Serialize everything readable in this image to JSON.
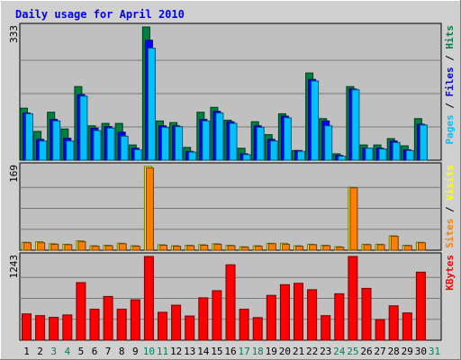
{
  "chart_data": {
    "type": "bar",
    "title": "Daily usage for April 2010",
    "days": [
      "1",
      "2",
      "3",
      "4",
      "5",
      "6",
      "7",
      "8",
      "9",
      "10",
      "11",
      "12",
      "13",
      "14",
      "15",
      "16",
      "17",
      "18",
      "19",
      "20",
      "21",
      "22",
      "23",
      "24",
      "25",
      "26",
      "27",
      "28",
      "29",
      "30",
      "31"
    ],
    "weekend_days": [
      "3",
      "4",
      "10",
      "11",
      "17",
      "18",
      "24",
      "25",
      "31"
    ],
    "panels": [
      {
        "id": "hits_files_pages",
        "max_label": "333",
        "ylim": [
          0,
          333
        ],
        "legend": [
          "Pages",
          "Files",
          "Hits"
        ],
        "series": [
          {
            "key": "hits",
            "values": [
              130,
              72,
              120,
              78,
              184,
              86,
              92,
              92,
              38,
              333,
              98,
              94,
              32,
              120,
              132,
              100,
              30,
              96,
              64,
              116,
              24,
              218,
              104,
              16,
              184,
              38,
              38,
              54,
              36,
              104,
              0
            ]
          },
          {
            "key": "files",
            "values": [
              118,
              52,
              102,
              55,
              164,
              80,
              84,
              70,
              30,
              300,
              86,
              86,
              22,
              102,
              122,
              96,
              16,
              86,
              52,
              110,
              24,
              202,
              98,
              12,
              178,
              30,
              30,
              48,
              26,
              90,
              0
            ]
          },
          {
            "key": "pages",
            "values": [
              116,
              48,
              98,
              48,
              160,
              74,
              80,
              60,
              26,
              280,
              82,
              84,
              20,
              98,
              118,
              92,
              14,
              82,
              48,
              106,
              22,
              198,
              86,
              10,
              176,
              30,
              28,
              44,
              24,
              88,
              0
            ]
          }
        ]
      },
      {
        "id": "visits_sites",
        "max_label": "169",
        "ylim": [
          0,
          169
        ],
        "legend": [
          "Sites",
          "Visits"
        ],
        "series": [
          {
            "key": "visits",
            "values": [
              16,
              17,
              13,
              12,
              19,
              9,
              10,
              14,
              9,
              169,
              11,
              9,
              10,
              11,
              13,
              10,
              7,
              9,
              14,
              14,
              9,
              12,
              10,
              7,
              127,
              12,
              12,
              29,
              10,
              16,
              0
            ]
          },
          {
            "key": "sites",
            "values": [
              15,
              15,
              12,
              11,
              17,
              8,
              9,
              13,
              8,
              166,
              10,
              8,
              9,
              10,
              12,
              9,
              6,
              8,
              13,
              12,
              8,
              11,
              9,
              6,
              126,
              11,
              11,
              28,
              9,
              15,
              0
            ]
          }
        ]
      },
      {
        "id": "kbytes",
        "max_label": "1243",
        "ylim": [
          0,
          1243
        ],
        "legend": [
          "KBytes"
        ],
        "series": [
          {
            "key": "kbytes",
            "values": [
              390,
              365,
              340,
              375,
              855,
              460,
              650,
              460,
              600,
              1243,
              415,
              520,
              360,
              630,
              735,
              1120,
              460,
              335,
              665,
              825,
              845,
              750,
              365,
              690,
              1243,
              770,
              305,
              510,
              405,
              1010,
              0
            ]
          }
        ]
      }
    ]
  },
  "colors": {
    "hits": "#008040",
    "files": "#0000ff",
    "pages": "#00c0ff",
    "visits": "#ffff00",
    "sites": "#ff8000",
    "kbytes": "#ff0000",
    "title": "#0000ff",
    "weekday_label": "#000000",
    "weekend_label": "#00805c",
    "panel_bg": "#c0c0c0",
    "frame_bg": "#d0d0d0"
  }
}
